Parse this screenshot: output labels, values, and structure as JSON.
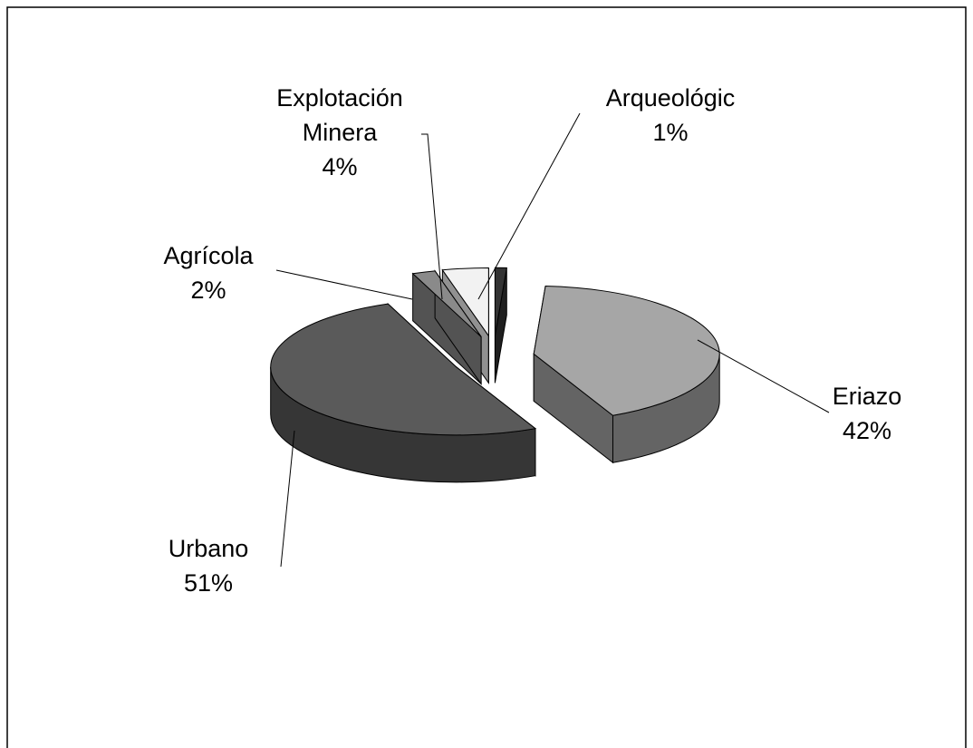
{
  "chart_data": {
    "type": "pie",
    "categories": [
      "Arqueológic",
      "Eriazo",
      "Urbano",
      "Agrícola",
      "Explotación Minera"
    ],
    "values": [
      1,
      42,
      51,
      2,
      4
    ],
    "value_labels": [
      "1%",
      "42%",
      "51%",
      "2%",
      "4%"
    ],
    "colors": [
      "#333333",
      "#a6a6a6",
      "#5a5a5a",
      "#8a8a8a",
      "#f2f2f2"
    ]
  }
}
